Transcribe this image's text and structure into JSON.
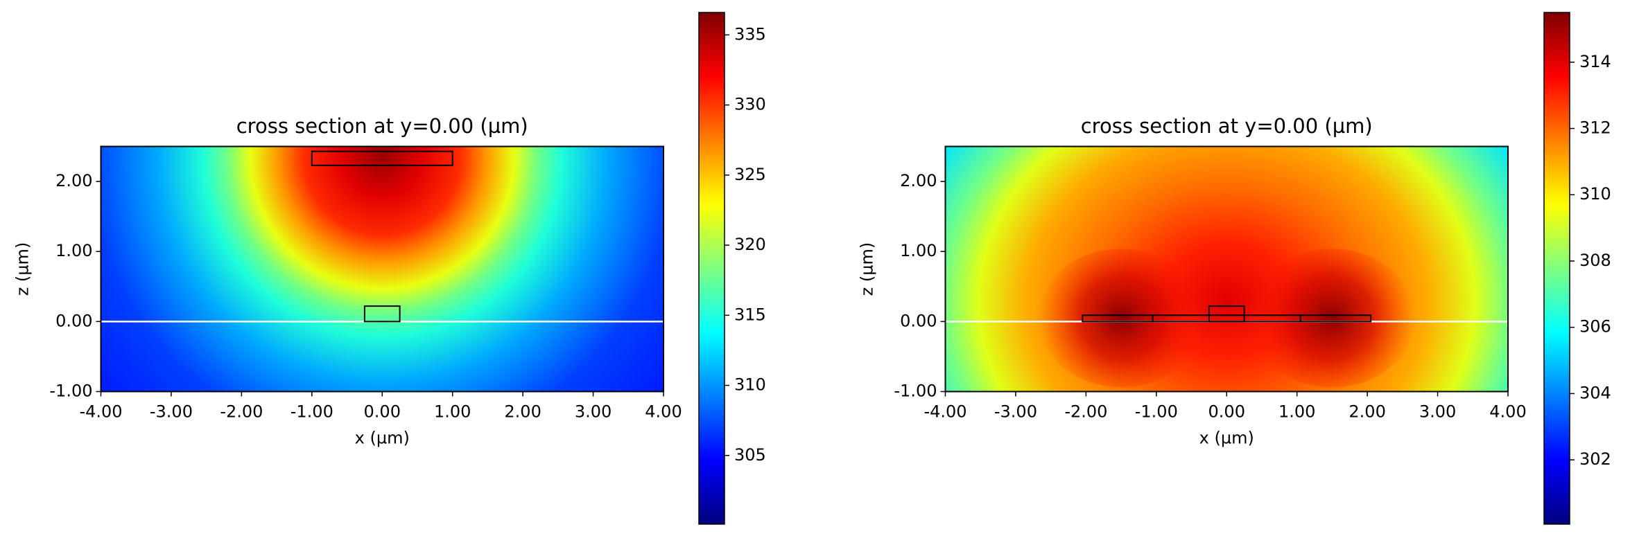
{
  "chart_data": [
    {
      "type": "heatmap",
      "title": "cross section at y=0.00 (µm)",
      "xlabel": "x (µm)",
      "ylabel": "z (µm)",
      "xlim": [
        -4,
        4
      ],
      "ylim": [
        -1,
        2.5
      ],
      "xticks": [
        {
          "value": -4,
          "label": "-4.00"
        },
        {
          "value": -3,
          "label": "-3.00"
        },
        {
          "value": -2,
          "label": "-2.00"
        },
        {
          "value": -1,
          "label": "-1.00"
        },
        {
          "value": 0,
          "label": "0.00"
        },
        {
          "value": 1,
          "label": "1.00"
        },
        {
          "value": 2,
          "label": "2.00"
        },
        {
          "value": 3,
          "label": "3.00"
        },
        {
          "value": 4,
          "label": "4.00"
        }
      ],
      "yticks": [
        {
          "value": -1,
          "label": "-1.00"
        },
        {
          "value": 0,
          "label": "0.00"
        },
        {
          "value": 1,
          "label": "1.00"
        },
        {
          "value": 2,
          "label": "2.00"
        }
      ],
      "clim": [
        300.1,
        336.6
      ],
      "cticks": [
        305,
        310,
        315,
        320,
        325,
        330,
        335
      ],
      "colormap": "jet",
      "interface_z": 0,
      "structures": [
        {
          "x": [
            -1,
            1
          ],
          "z": [
            2.23,
            2.43
          ]
        },
        {
          "x": [
            -0.25,
            0.25
          ],
          "z": [
            0,
            0.22
          ]
        }
      ]
    },
    {
      "type": "heatmap",
      "title": "cross section at y=0.00 (µm)",
      "xlabel": "x (µm)",
      "ylabel": "z (µm)",
      "xlim": [
        -4,
        4
      ],
      "ylim": [
        -1,
        2.5
      ],
      "xticks": [
        {
          "value": -4,
          "label": "-4.00"
        },
        {
          "value": -3,
          "label": "-3.00"
        },
        {
          "value": -2,
          "label": "-2.00"
        },
        {
          "value": -1,
          "label": "-1.00"
        },
        {
          "value": 0,
          "label": "0.00"
        },
        {
          "value": 1,
          "label": "1.00"
        },
        {
          "value": 2,
          "label": "2.00"
        },
        {
          "value": 3,
          "label": "3.00"
        },
        {
          "value": 4,
          "label": "4.00"
        }
      ],
      "yticks": [
        {
          "value": -1,
          "label": "-1.00"
        },
        {
          "value": 0,
          "label": "0.00"
        },
        {
          "value": 1,
          "label": "1.00"
        },
        {
          "value": 2,
          "label": "2.00"
        }
      ],
      "clim": [
        300.06,
        315.5
      ],
      "cticks": [
        302,
        304,
        306,
        308,
        310,
        312,
        314
      ],
      "colormap": "jet",
      "interface_z": 0,
      "structures": [
        {
          "x": [
            -2.05,
            -1.05
          ],
          "z": [
            0,
            0.09
          ]
        },
        {
          "x": [
            -1.05,
            1.05
          ],
          "z": [
            0,
            0.09
          ]
        },
        {
          "x": [
            1.05,
            2.05
          ],
          "z": [
            0,
            0.09
          ]
        },
        {
          "x": [
            -0.25,
            0.25
          ],
          "z": [
            0,
            0.22
          ]
        }
      ]
    }
  ]
}
